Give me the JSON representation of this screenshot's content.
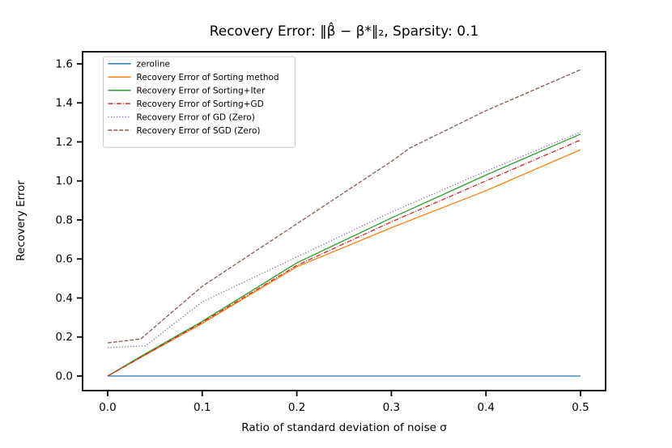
{
  "figure": {
    "title": "Recovery Error: ‖β̂ − β*‖₂, Sparsity: 0.1",
    "xlabel": "Ratio of standard deviation of noise σ",
    "ylabel": "Recovery Error"
  },
  "chart_data": {
    "type": "line",
    "title": "Recovery Error: ‖β̂ − β*‖₂, Sparsity: 0.1",
    "xlabel": "Ratio of standard deviation of noise σ",
    "ylabel": "Recovery Error",
    "xlim": [
      -0.0265,
      0.5265
    ],
    "ylim": [
      -0.0746,
      1.662
    ],
    "xticks": [
      0.0,
      0.1,
      0.2,
      0.3,
      0.4,
      0.5
    ],
    "yticks": [
      0.0,
      0.2,
      0.4,
      0.6,
      0.8,
      1.0,
      1.2,
      1.4,
      1.6
    ],
    "grid": false,
    "legend_position": "upper left",
    "series": [
      {
        "name": "zeroline",
        "color": "#1f77b4",
        "style": "solid",
        "points": [
          [
            0.0,
            0.0
          ],
          [
            0.5,
            0.0
          ]
        ]
      },
      {
        "name": "Recovery Error of Sorting method",
        "color": "#ff7f0e",
        "style": "solid",
        "points": [
          [
            0.0,
            0.0
          ],
          [
            0.033,
            0.09
          ],
          [
            0.1,
            0.27
          ],
          [
            0.2,
            0.56
          ],
          [
            0.3,
            0.76
          ],
          [
            0.4,
            0.95
          ],
          [
            0.5,
            1.16
          ]
        ]
      },
      {
        "name": "Recovery Error of Sorting+Iter",
        "color": "#2ca02c",
        "style": "solid",
        "points": [
          [
            0.0,
            0.0
          ],
          [
            0.033,
            0.095
          ],
          [
            0.1,
            0.28
          ],
          [
            0.2,
            0.58
          ],
          [
            0.3,
            0.81
          ],
          [
            0.4,
            1.03
          ],
          [
            0.5,
            1.24
          ]
        ]
      },
      {
        "name": "Recovery Error of Sorting+GD",
        "color": "#d62728",
        "style": "dashdot",
        "points": [
          [
            0.0,
            0.0
          ],
          [
            0.033,
            0.09
          ],
          [
            0.1,
            0.275
          ],
          [
            0.2,
            0.567
          ],
          [
            0.3,
            0.79
          ],
          [
            0.4,
            1.0
          ],
          [
            0.5,
            1.21
          ]
        ]
      },
      {
        "name": "Recovery Error of GD (Zero)",
        "color": "#9467bd",
        "style": "dotted",
        "points": [
          [
            0.0,
            0.145
          ],
          [
            0.04,
            0.155
          ],
          [
            0.1,
            0.38
          ],
          [
            0.2,
            0.61
          ],
          [
            0.3,
            0.84
          ],
          [
            0.4,
            1.05
          ],
          [
            0.5,
            1.25
          ]
        ]
      },
      {
        "name": "Recovery Error of SGD (Zero)",
        "color": "#8c564b",
        "style": "dashed",
        "points": [
          [
            0.0,
            0.17
          ],
          [
            0.035,
            0.19
          ],
          [
            0.1,
            0.46
          ],
          [
            0.2,
            0.78
          ],
          [
            0.3,
            1.1
          ],
          [
            0.32,
            1.17
          ],
          [
            0.4,
            1.36
          ],
          [
            0.5,
            1.57
          ]
        ]
      }
    ]
  }
}
